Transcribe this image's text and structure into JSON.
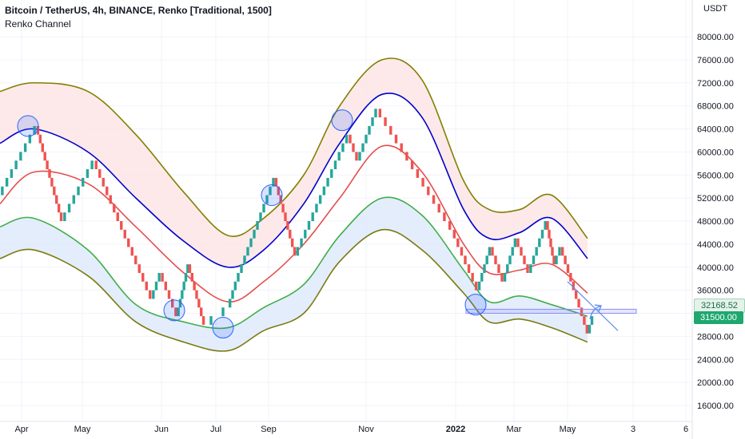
{
  "header": {
    "title": "Bitcoin / TetherUS, 4h, BINANCE, Renko [Traditional, 1500]",
    "indicator": "Renko Channel"
  },
  "axis": {
    "currency": "USDT",
    "price_tag_a": "32168.52",
    "price_tag_b": "31500.00"
  },
  "colors": {
    "up_brick": "#26a69a",
    "down_brick": "#ef5350",
    "upper_outer": "#808000",
    "upper_inner": "#0000cc",
    "middle": "#e54d4d",
    "lower_inner": "#3fae49",
    "lower_outer": "#7a7a10",
    "upper_fill": "#fde3e3",
    "lower_fill": "#dde8fb",
    "circle": "#2962ff",
    "arrow": "#5b8def"
  },
  "chart_data": {
    "type": "line",
    "title": "Bitcoin / TetherUS, 4h, BINANCE, Renko [Traditional, 1500]",
    "ylim": [
      14000,
      83000
    ],
    "y_ticks": [
      16000,
      20000,
      24000,
      28000,
      32000,
      36000,
      40000,
      44000,
      48000,
      52000,
      56000,
      60000,
      64000,
      68000,
      72000,
      76000,
      80000
    ],
    "y_tick_labels": [
      "16000.00",
      "20000.00",
      "24000.00",
      "28000.00",
      "32000.00",
      "36000.00",
      "40000.00",
      "44000.00",
      "48000.00",
      "52000.00",
      "56000.00",
      "60000.00",
      "64000.00",
      "68000.00",
      "72000.00",
      "76000.00",
      "80000.00"
    ],
    "x_tick_labels": [
      "Apr",
      "May",
      "Jun",
      "Jul",
      "Sep",
      "Nov",
      "2022",
      "Mar",
      "May",
      "3",
      "6"
    ],
    "x_range": [
      0,
      860
    ],
    "x_tick_positions": [
      27,
      103,
      202,
      270,
      336,
      458,
      570,
      643,
      710,
      792,
      858
    ],
    "brick_size": 1500,
    "bricks": [
      [
        0,
        52500
      ],
      [
        46,
        64500
      ],
      [
        78,
        48000
      ],
      [
        118,
        58500
      ],
      [
        190,
        34500
      ],
      [
        201,
        39000
      ],
      [
        222,
        31500
      ],
      [
        236,
        40500
      ],
      [
        256,
        30000
      ],
      [
        272,
        31500
      ],
      [
        286,
        33000
      ],
      [
        296,
        37500
      ],
      [
        344,
        55500
      ],
      [
        370,
        42000
      ],
      [
        436,
        63000
      ],
      [
        448,
        58500
      ],
      [
        472,
        67500
      ],
      [
        566,
        46500
      ],
      [
        598,
        36000
      ],
      [
        614,
        43500
      ],
      [
        630,
        37500
      ],
      [
        646,
        45000
      ],
      [
        662,
        39000
      ],
      [
        684,
        48000
      ],
      [
        694,
        40500
      ],
      [
        702,
        43500
      ],
      [
        736,
        28500
      ],
      [
        742,
        31500
      ]
    ],
    "series": [
      {
        "key": "upper_outer",
        "x": [
          0,
          42,
          110,
          170,
          230,
          285,
          330,
          380,
          425,
          478,
          528,
          580,
          612,
          650,
          690,
          735
        ],
        "y": [
          70500,
          72000,
          70500,
          63000,
          53000,
          45500,
          48500,
          56000,
          68000,
          76000,
          72500,
          55000,
          50000,
          50000,
          52500,
          45000
        ]
      },
      {
        "key": "upper_inner",
        "x": [
          0,
          42,
          110,
          170,
          230,
          285,
          330,
          380,
          425,
          478,
          528,
          580,
          612,
          650,
          690,
          735
        ],
        "y": [
          61500,
          64000,
          60000,
          52000,
          44500,
          40000,
          43000,
          51000,
          61500,
          70000,
          66000,
          50000,
          45000,
          46000,
          48500,
          41500
        ]
      },
      {
        "key": "middle",
        "x": [
          0,
          42,
          110,
          170,
          230,
          285,
          330,
          380,
          425,
          478,
          528,
          580,
          612,
          650,
          690,
          735
        ],
        "y": [
          51000,
          56500,
          54500,
          47000,
          39000,
          34000,
          37500,
          44000,
          52000,
          61000,
          56500,
          44000,
          39000,
          39500,
          40500,
          35500
        ]
      },
      {
        "key": "lower_inner",
        "x": [
          0,
          42,
          110,
          170,
          230,
          285,
          330,
          380,
          425,
          478,
          528,
          580,
          612,
          650,
          690,
          735
        ],
        "y": [
          47000,
          48500,
          43000,
          33500,
          30500,
          29500,
          33000,
          37000,
          45500,
          52000,
          49000,
          39500,
          34000,
          35000,
          33500,
          31500
        ]
      },
      {
        "key": "lower_outer",
        "x": [
          0,
          42,
          110,
          170,
          230,
          285,
          330,
          380,
          425,
          478,
          528,
          580,
          612,
          650,
          690,
          735
        ],
        "y": [
          41500,
          43000,
          38500,
          30500,
          27000,
          25500,
          29000,
          32000,
          41000,
          46500,
          43000,
          35500,
          30500,
          31000,
          29500,
          27000
        ]
      }
    ],
    "circles": [
      [
        35,
        64500
      ],
      [
        218,
        32500
      ],
      [
        279,
        29500
      ],
      [
        340,
        52500
      ],
      [
        428,
        65500
      ],
      [
        595,
        33500
      ]
    ],
    "annotations": {
      "zone": {
        "x1": 583,
        "x2": 796,
        "y_low": 32000,
        "y_high": 32700
      },
      "trend_line": {
        "x1": 710,
        "y1": 37500,
        "x2": 773,
        "y2": 29000
      },
      "arrow": {
        "x1": 738,
        "y1": 31000,
        "x2": 752,
        "y2": 33300
      }
    }
  }
}
